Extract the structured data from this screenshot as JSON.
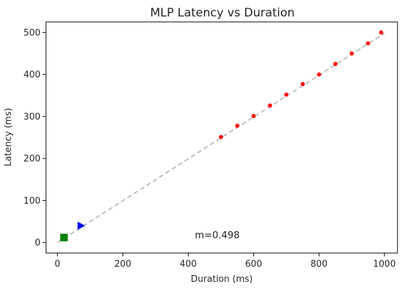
{
  "chart_data": {
    "type": "scatter",
    "title": "MLP Latency vs Duration",
    "xlabel": "Duration (ms)",
    "ylabel": "Latency (ms)",
    "xlim": [
      -35,
      1040
    ],
    "ylim": [
      -25,
      525
    ],
    "xticks": [
      0,
      200,
      400,
      600,
      800,
      1000
    ],
    "yticks": [
      0,
      100,
      200,
      300,
      400,
      500
    ],
    "grid": false,
    "series": [
      {
        "marker": "circle",
        "color": "#ff0000",
        "x": [
          500,
          550,
          600,
          650,
          700,
          750,
          800,
          850,
          900,
          950,
          990
        ],
        "y": [
          251,
          278,
          301,
          326,
          352,
          377,
          400,
          425,
          450,
          474,
          500
        ]
      },
      {
        "marker": "triangle-right",
        "color": "#0000ff",
        "x": [
          72
        ],
        "y": [
          40
        ]
      },
      {
        "marker": "square",
        "color": "#008000",
        "x": [
          20
        ],
        "y": [
          12
        ]
      }
    ],
    "fit_line": {
      "color": "#bfbfbf",
      "style": "dashed",
      "x": [
        0,
        1000
      ],
      "y": [
        0,
        498
      ]
    },
    "annotation": {
      "text": "m=0.498",
      "x": 420,
      "y": 10
    }
  }
}
